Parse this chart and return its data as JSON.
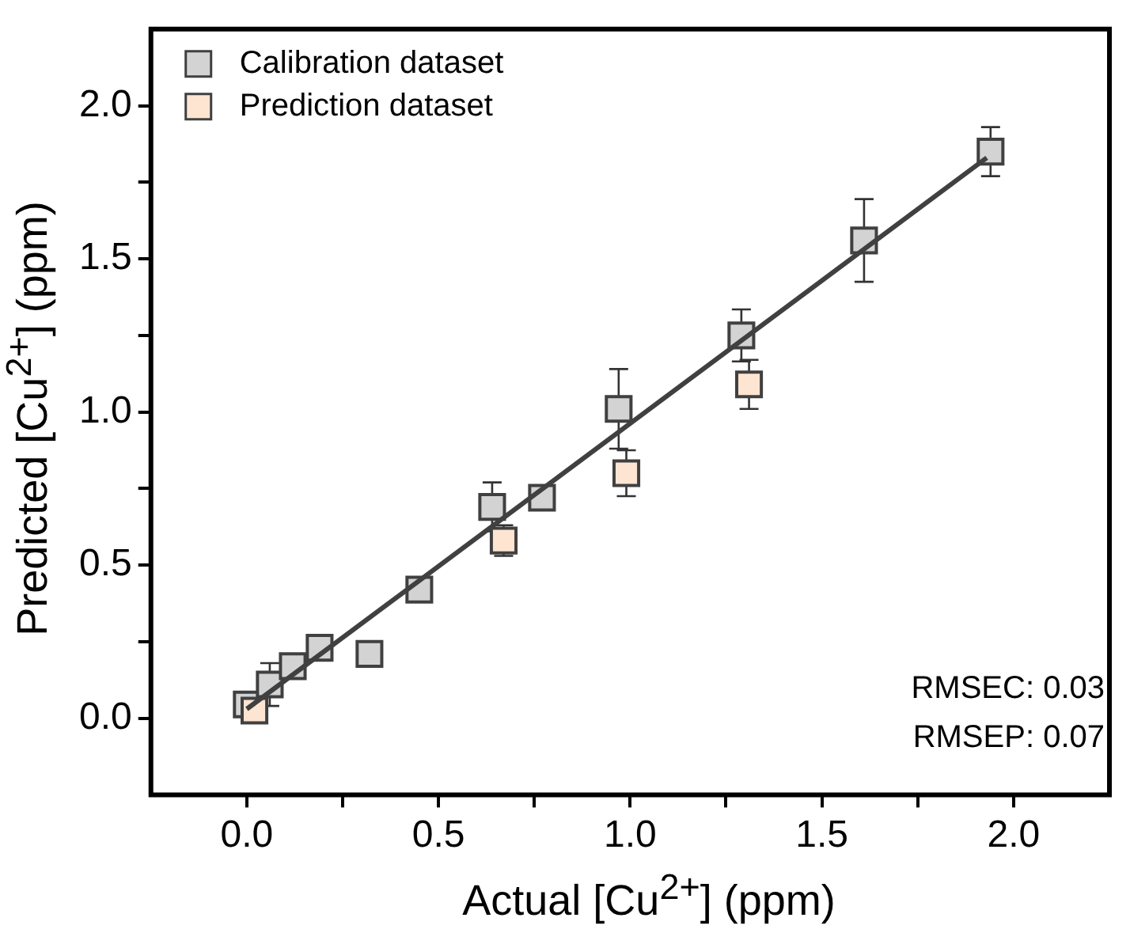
{
  "chart_data": {
    "type": "scatter",
    "xlabel": "Actual [Cu$^{2+}$] (ppm)",
    "ylabel": "Predicted [Cu$^{2+}$]  (ppm)",
    "xlim": [
      -0.25,
      2.25
    ],
    "ylim": [
      -0.25,
      2.25
    ],
    "xticks": [
      {
        "value": 0,
        "label": "0.0"
      },
      {
        "value": 0.25,
        "label": null
      },
      {
        "value": 0.5,
        "label": "0.5"
      },
      {
        "value": 0.75,
        "label": null
      },
      {
        "value": 1,
        "label": "1.0"
      },
      {
        "value": 1.25,
        "label": null
      },
      {
        "value": 1.5,
        "label": "1.5"
      },
      {
        "value": 1.75,
        "label": null
      },
      {
        "value": 2,
        "label": "2.0"
      }
    ],
    "yticks": [
      {
        "value": 0,
        "label": "0.0"
      },
      {
        "value": 0.25,
        "label": null
      },
      {
        "value": 0.5,
        "label": "0.5"
      },
      {
        "value": 0.75,
        "label": null
      },
      {
        "value": 1,
        "label": "1.0"
      },
      {
        "value": 1.25,
        "label": null
      },
      {
        "value": 1.5,
        "label": "1.5"
      },
      {
        "value": 1.75,
        "label": null
      },
      {
        "value": 2,
        "label": "2.0"
      }
    ],
    "grid": false,
    "legend": "top left",
    "marker": "square",
    "series": [
      {
        "name": "Calibration dataset",
        "color": "#d3d3d3",
        "x": [
          0.0,
          0.06,
          0.12,
          0.19,
          0.32,
          0.45,
          0.64,
          0.77,
          0.97,
          1.29,
          1.61,
          1.94
        ],
        "values": [
          0.045,
          0.11,
          0.17,
          0.23,
          0.21,
          0.42,
          0.69,
          0.72,
          1.01,
          1.25,
          1.56,
          1.85
        ],
        "errors": [
          null,
          0.07,
          null,
          null,
          null,
          null,
          0.08,
          null,
          0.13,
          0.085,
          0.135,
          0.08
        ]
      },
      {
        "name": "Prediction dataset",
        "color": "#fde5d2",
        "x": [
          0.02,
          0.67,
          0.99,
          1.31
        ],
        "values": [
          0.025,
          0.58,
          0.8,
          1.09
        ],
        "errors": [
          null,
          0.05,
          0.075,
          0.08
        ]
      },
      {
        "type": "line",
        "color": "#404040",
        "marker": "none",
        "x": [
          0.0,
          1.93
        ],
        "values": [
          0.03,
          1.83
        ]
      }
    ],
    "annotations": [
      "RMSEC: 0.03",
      "RMSEP: 0.07"
    ]
  }
}
